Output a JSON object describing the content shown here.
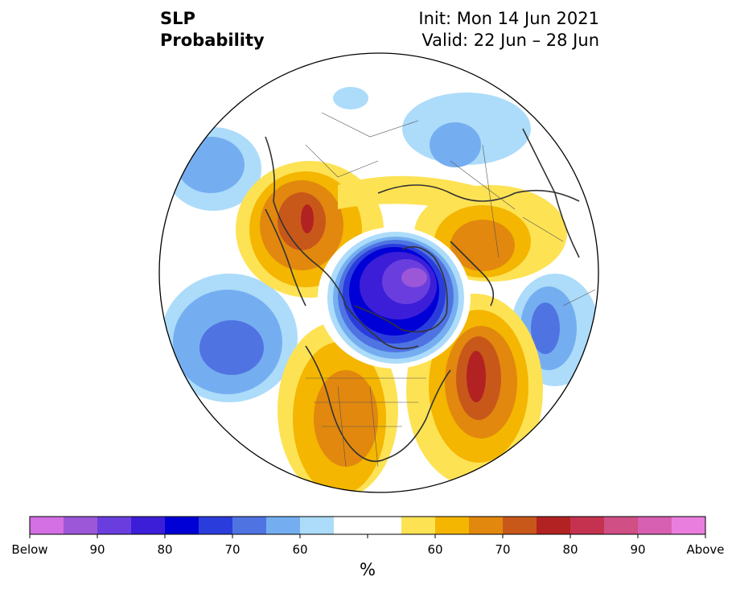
{
  "title": {
    "variable": "SLP",
    "subtitle": "Probability",
    "init": "Init: Mon 14 Jun 2021",
    "valid": "Valid: 22 Jun – 28 Jun"
  },
  "colorbar": {
    "unit": "%",
    "labels": [
      "Below",
      "90",
      "80",
      "70",
      "60",
      "60",
      "70",
      "80",
      "90",
      "Above"
    ],
    "colors": [
      "#d46fe4",
      "#9c57d9",
      "#6a3ede",
      "#3c1ed8",
      "#0000d6",
      "#2a3ddc",
      "#4f74e2",
      "#75aef0",
      "#acdcfa",
      "#ffffff",
      "#ffffff",
      "#fde254",
      "#f4b600",
      "#e2880e",
      "#c8581a",
      "#b32222",
      "#c4324f",
      "#d04f84",
      "#d860b2",
      "#e97ede"
    ]
  },
  "map": {
    "projection": "north-polar-stereographic",
    "ocean_color": "#ffffff",
    "coastline_color": "#333333"
  }
}
